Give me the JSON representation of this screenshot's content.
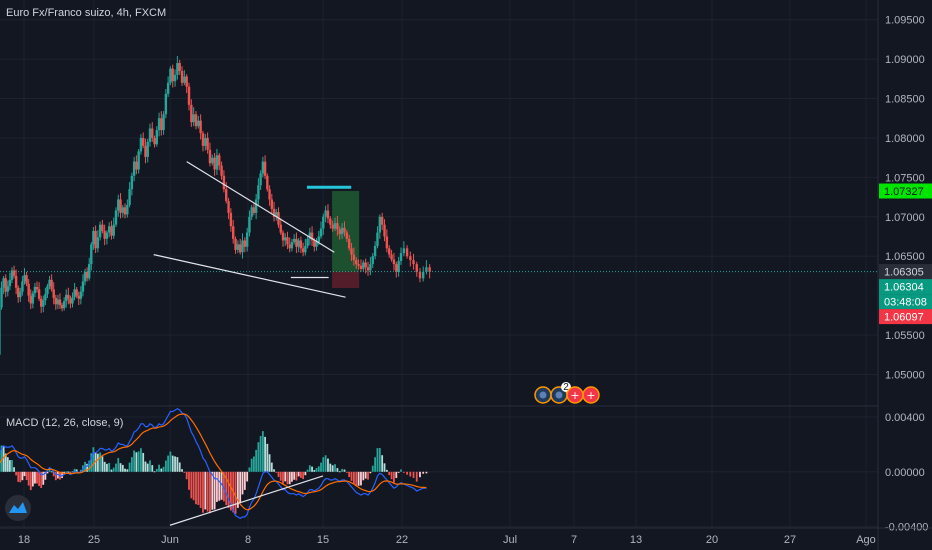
{
  "symbol": {
    "title": "Euro Fx/Franco suizo, 4h, FXCM"
  },
  "indicator": {
    "title": "MACD (12, 26, close, 9)"
  },
  "chart_data": {
    "type": "candlestick",
    "title": "Euro Fx/Franco suizo, 4h, FXCM",
    "price_axis": {
      "ticks": [
        "1.09500",
        "1.09000",
        "1.08500",
        "1.08000",
        "1.07500",
        "1.07000",
        "1.06500",
        "1.05500",
        "1.05000"
      ],
      "ylim": [
        1.046,
        1.0975
      ]
    },
    "macd_axis": {
      "ticks": [
        "0.00400",
        "0.00000",
        "-0.00400"
      ],
      "ylim": [
        -0.0041,
        0.0048
      ]
    },
    "x_ticks": [
      "18",
      "25",
      "Jun",
      "8",
      "15",
      "22",
      "Jul",
      "7",
      "13",
      "20",
      "27",
      "Ago"
    ],
    "price_labels": [
      {
        "text": "1.07327",
        "value": 1.07327,
        "color": "#00e600",
        "text_color": "#131722"
      },
      {
        "text": "1.06305",
        "value": 1.06305,
        "color": "#2a2e39",
        "text_color": "#d1d4dc"
      },
      {
        "text": "1.06304",
        "value": 1.06304,
        "color": "#089981",
        "text_color": "#ffffff"
      },
      {
        "text": "03:48:08",
        "value": 1.062,
        "color": "#089981",
        "text_color": "#ffffff"
      },
      {
        "text": "1.06097",
        "value": 1.06097,
        "color": "#f23645",
        "text_color": "#ffffff"
      }
    ],
    "last_price": 1.06305,
    "target_level": 1.07327,
    "stop_level": 1.06097,
    "trend_lines": [
      {
        "name": "upper-wedge-line",
        "from": [
          15.5,
          1.077
        ],
        "to": [
          29.0,
          1.0655
        ]
      },
      {
        "name": "lower-wedge-line",
        "from": [
          12.5,
          1.0652
        ],
        "to": [
          30.0,
          1.0598
        ]
      },
      {
        "name": "support-line",
        "from": [
          25.0,
          1.0623
        ],
        "to": [
          28.5,
          1.0623
        ]
      },
      {
        "name": "target-line",
        "from": [
          26.5,
          1.07375
        ],
        "to": [
          30.5,
          1.07375
        ]
      }
    ],
    "macd_trend_line": {
      "from": [
        14.0,
        -0.0039
      ],
      "to": [
        28.0,
        -0.0003
      ]
    },
    "colors": {
      "up": "#26a69a",
      "down": "#ef5350",
      "macd": "#2962ff",
      "signal": "#ff6d00",
      "target_zone": "#1e5631",
      "stop_zone": "#5b1e2a",
      "target_line": "#26c6da"
    },
    "events_badge": "2",
    "candles_close": [
      1.052,
      1.0512,
      1.0508,
      1.0515,
      1.0525,
      1.0585,
      1.061,
      1.0622,
      1.0605,
      1.0612,
      1.062,
      1.0632,
      1.0625,
      1.061,
      1.0598,
      1.0605,
      1.0618,
      1.0626,
      1.0615,
      1.06,
      1.059,
      1.0603,
      1.0611,
      1.0608,
      1.0596,
      1.0586,
      1.0594,
      1.0602,
      1.0612,
      1.062,
      1.0608,
      1.0597,
      1.0589,
      1.0595,
      1.0588,
      1.0584,
      1.0593,
      1.0601,
      1.0596,
      1.059,
      1.0598,
      1.0608,
      1.06,
      1.0596,
      1.0605,
      1.0618,
      1.063,
      1.0622,
      1.064,
      1.0665,
      1.0682,
      1.066,
      1.0674,
      1.069,
      1.0682,
      1.0672,
      1.068,
      1.0688,
      1.0676,
      1.069,
      1.0708,
      1.0722,
      1.0705,
      1.0712,
      1.0703,
      1.0715,
      1.0735,
      1.0752,
      1.077,
      1.076,
      1.0783,
      1.08,
      1.079,
      1.0776,
      1.0795,
      1.0812,
      1.08,
      1.0792,
      1.081,
      1.0825,
      1.081,
      1.083,
      1.0856,
      1.087,
      1.0888,
      1.0872,
      1.088,
      1.0895,
      1.0885,
      1.087,
      1.0878,
      1.0865,
      1.0842,
      1.082,
      1.083,
      1.0815,
      1.0822,
      1.0806,
      1.079,
      1.08,
      1.0785,
      1.0768,
      1.0775,
      1.076,
      1.0778,
      1.0765,
      1.0752,
      1.0735,
      1.072,
      1.0705,
      1.0688,
      1.0672,
      1.0658,
      1.0665,
      1.0655,
      1.067,
      1.0662,
      1.068,
      1.07,
      1.0712,
      1.0705,
      1.0722,
      1.074,
      1.0755,
      1.077,
      1.0752,
      1.0735,
      1.0722,
      1.071,
      1.07,
      1.0706,
      1.069,
      1.068,
      1.067,
      1.0674,
      1.0665,
      1.066,
      1.0668,
      1.0672,
      1.0662,
      1.067,
      1.066,
      1.0655,
      1.0663,
      1.0672,
      1.068,
      1.067,
      1.0662,
      1.0668,
      1.0675,
      1.0685,
      1.07,
      1.0708,
      1.0698,
      1.069,
      1.0685,
      1.0692,
      1.0684,
      1.0678,
      1.0686,
      1.068,
      1.0672,
      1.066,
      1.0652,
      1.0645,
      1.064,
      1.0638,
      1.0634,
      1.0642,
      1.0636,
      1.0632,
      1.064,
      1.065,
      1.0663,
      1.068,
      1.07,
      1.069,
      1.0675,
      1.066,
      1.0652,
      1.0646,
      1.064,
      1.063,
      1.0644,
      1.0654,
      1.066,
      1.065,
      1.0645,
      1.064,
      1.063,
      1.0622,
      1.063,
      1.0636,
      1.063
    ],
    "macd_line": [
      0.0004,
      0.0003,
      0.0003,
      0.0004,
      0.0007,
      0.0013,
      0.0017,
      0.0019,
      0.0018,
      0.0018,
      0.0018,
      0.0019,
      0.0017,
      0.0014,
      0.0011,
      0.001,
      0.001,
      0.0011,
      0.0009,
      0.0006,
      0.0003,
      0.0003,
      0.0003,
      0.0002,
      0.0,
      -0.0002,
      -0.0002,
      -0.0001,
      0.0001,
      0.0003,
      0.0002,
      0.0,
      -0.0002,
      -0.0002,
      -0.0003,
      -0.0003,
      -0.0002,
      -0.0001,
      -0.0001,
      -0.0002,
      -0.0001,
      0.0,
      0.0,
      -0.0001,
      0.0,
      0.0002,
      0.0004,
      0.0004,
      0.0006,
      0.001,
      0.0014,
      0.0014,
      0.0015,
      0.0017,
      0.0017,
      0.0016,
      0.0016,
      0.0017,
      0.0015,
      0.0016,
      0.0018,
      0.0021,
      0.002,
      0.002,
      0.0019,
      0.0019,
      0.0022,
      0.0025,
      0.0029,
      0.003,
      0.0032,
      0.0035,
      0.0035,
      0.0033,
      0.0033,
      0.0035,
      0.0034,
      0.0032,
      0.0033,
      0.0035,
      0.0034,
      0.0035,
      0.0038,
      0.0041,
      0.0044,
      0.0044,
      0.0045,
      0.0046,
      0.0045,
      0.0043,
      0.0042,
      0.0039,
      0.0034,
      0.0029,
      0.0026,
      0.0022,
      0.0019,
      0.0015,
      0.001,
      0.0008,
      0.0004,
      0.0,
      -0.0002,
      -0.0005,
      -0.0005,
      -0.0007,
      -0.0009,
      -0.0012,
      -0.0016,
      -0.002,
      -0.0024,
      -0.0028,
      -0.0032,
      -0.0033,
      -0.0034,
      -0.0033,
      -0.0033,
      -0.0031,
      -0.0026,
      -0.0022,
      -0.002,
      -0.0016,
      -0.0011,
      -0.0006,
      -0.0001,
      0.0,
      0.0,
      -0.0002,
      -0.0004,
      -0.0006,
      -0.0007,
      -0.0009,
      -0.0011,
      -0.0013,
      -0.0013,
      -0.0015,
      -0.0016,
      -0.0016,
      -0.0016,
      -0.0017,
      -0.0016,
      -0.0017,
      -0.0018,
      -0.0017,
      -0.0015,
      -0.0013,
      -0.0013,
      -0.0014,
      -0.0013,
      -0.0012,
      -0.001,
      -0.0007,
      -0.0005,
      -0.0005,
      -0.0006,
      -0.0006,
      -0.0005,
      -0.0006,
      -0.0007,
      -0.0006,
      -0.0006,
      -0.0007,
      -0.0009,
      -0.0011,
      -0.0013,
      -0.0015,
      -0.0016,
      -0.0017,
      -0.0016,
      -0.0016,
      -0.0017,
      -0.0015,
      -0.0012,
      -0.0008,
      -0.0003,
      -0.0001,
      -0.0002,
      -0.0004,
      -0.0006,
      -0.0008,
      -0.001,
      -0.0012,
      -0.0011,
      -0.0009,
      -0.0008,
      -0.0009,
      -0.001,
      -0.0011,
      -0.0012,
      -0.0014,
      -0.0013,
      -0.0012,
      -0.0012
    ]
  }
}
